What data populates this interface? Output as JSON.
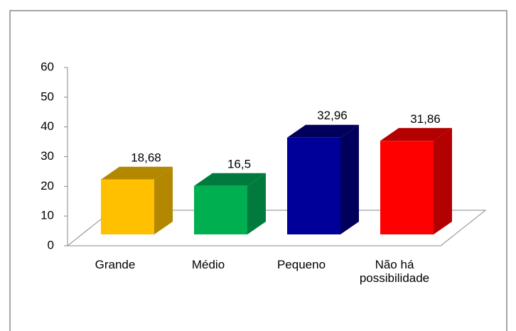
{
  "chart_data": {
    "type": "bar3d",
    "categories": [
      "Grande",
      "Médio",
      "Pequeno",
      "Não há possibilidade"
    ],
    "values": [
      18.68,
      16.5,
      32.96,
      31.86
    ],
    "value_labels": [
      "18,68",
      "16,5",
      "32,96",
      "31,86"
    ],
    "colors": [
      "#ffc000",
      "#00b050",
      "#000099",
      "#ff0000"
    ],
    "side_colors": [
      "#b38700",
      "#007a3d",
      "#00005c",
      "#b30000"
    ],
    "ylim": [
      0,
      60
    ],
    "yticks": [
      0,
      10,
      20,
      30,
      40,
      50,
      60
    ]
  }
}
